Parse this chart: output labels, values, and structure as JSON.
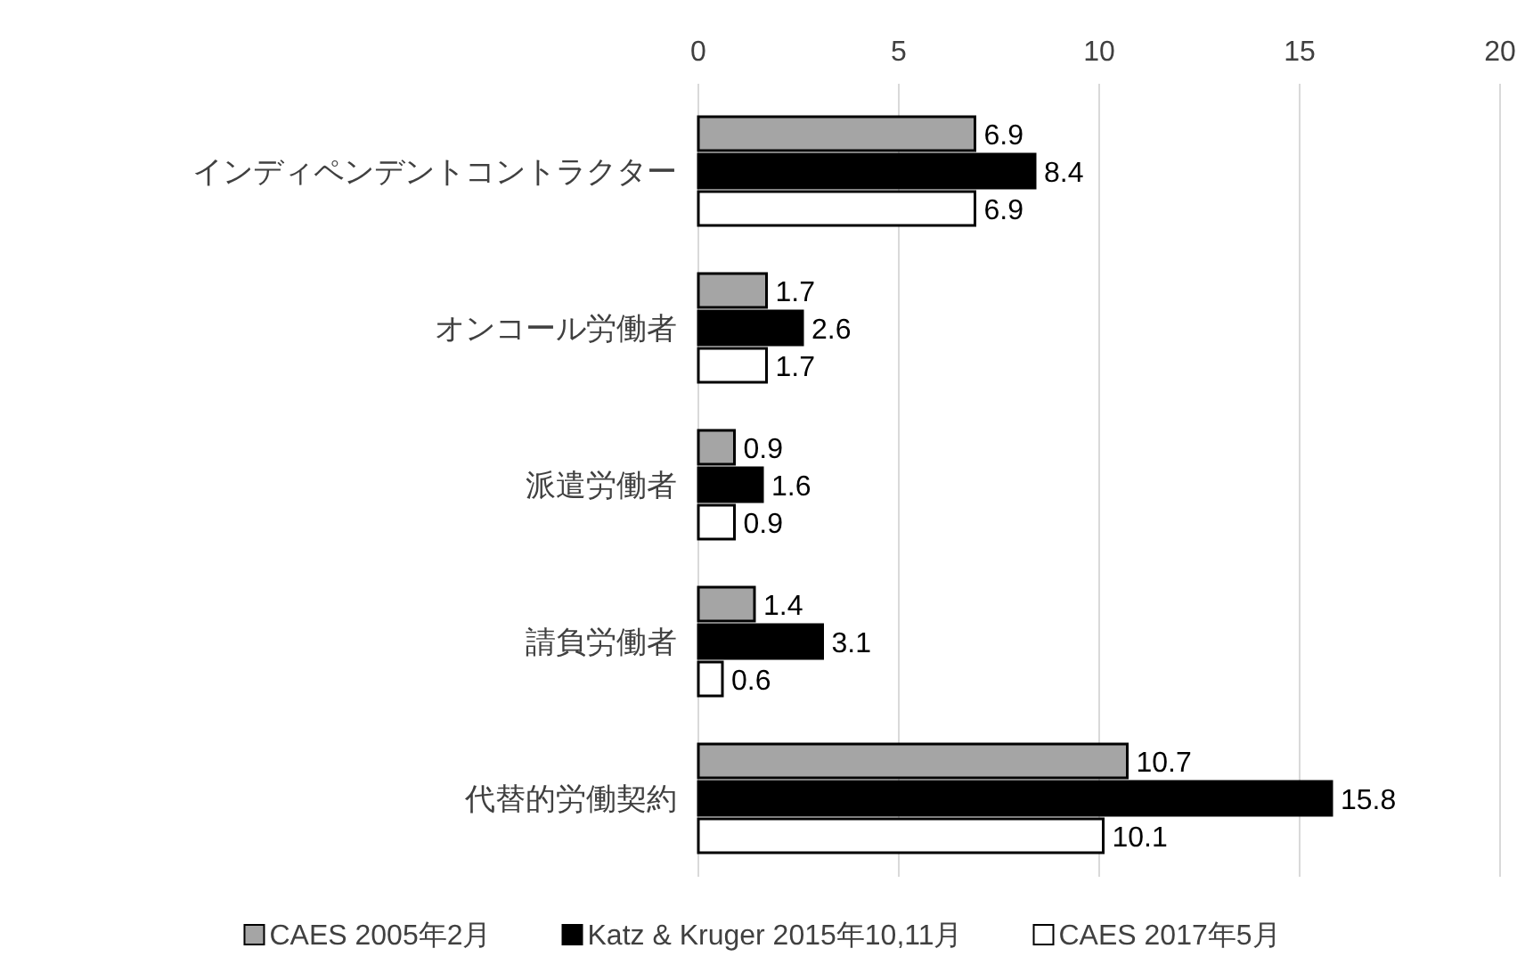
{
  "chart_data": {
    "type": "bar",
    "orientation": "horizontal",
    "categories": [
      "インディペンデントコントラクター",
      "オンコール労働者",
      "派遣労働者",
      "請負労働者",
      "代替的労働契約"
    ],
    "series": [
      {
        "name": "CAES 2005年2月",
        "color": "#a5a5a5",
        "values": [
          6.9,
          1.7,
          0.9,
          1.4,
          10.7
        ]
      },
      {
        "name": "Katz & Kruger 2015年10,11月",
        "color": "#000000",
        "values": [
          8.4,
          2.6,
          1.6,
          3.1,
          15.8
        ]
      },
      {
        "name": "CAES 2017年5月",
        "color": "#ffffff",
        "values": [
          6.9,
          1.7,
          0.9,
          0.6,
          10.1
        ]
      }
    ],
    "xlim": [
      0,
      20
    ],
    "xticks": [
      0,
      5,
      10,
      15,
      20
    ],
    "grid": "x",
    "legend": "bottom",
    "data_labels": true
  }
}
